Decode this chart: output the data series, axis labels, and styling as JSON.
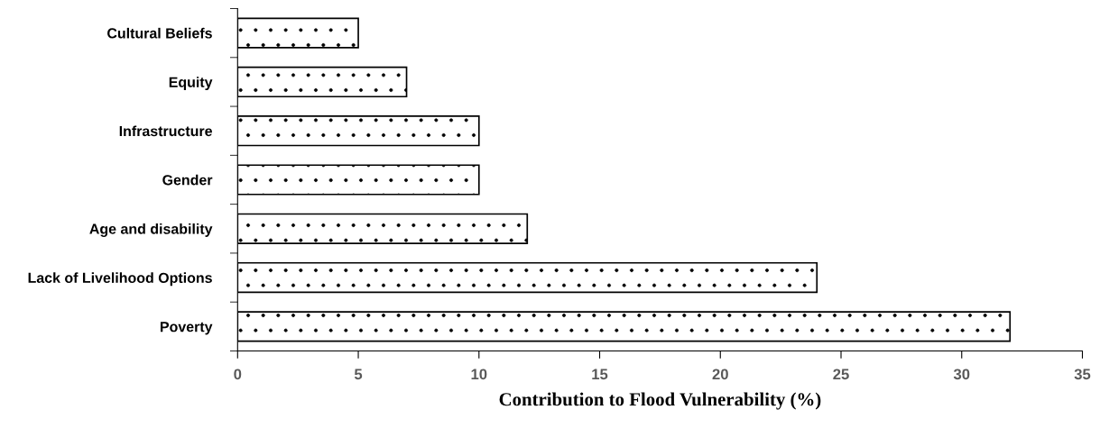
{
  "chart_data": {
    "type": "bar",
    "orientation": "horizontal",
    "categories": [
      "Cultural Beliefs",
      "Equity",
      "Infrastructure",
      "Gender",
      "Age and disability",
      "Lack of Livelihood Options",
      "Poverty"
    ],
    "values": [
      5,
      7,
      10,
      10,
      12,
      24,
      32
    ],
    "color": "#ffffff",
    "xlim": [
      0,
      35
    ],
    "xticks": [
      0,
      5,
      10,
      15,
      20,
      25,
      30,
      35
    ],
    "xlabel": "Contribution to Flood Vulnerability (%)",
    "grid": false
  }
}
